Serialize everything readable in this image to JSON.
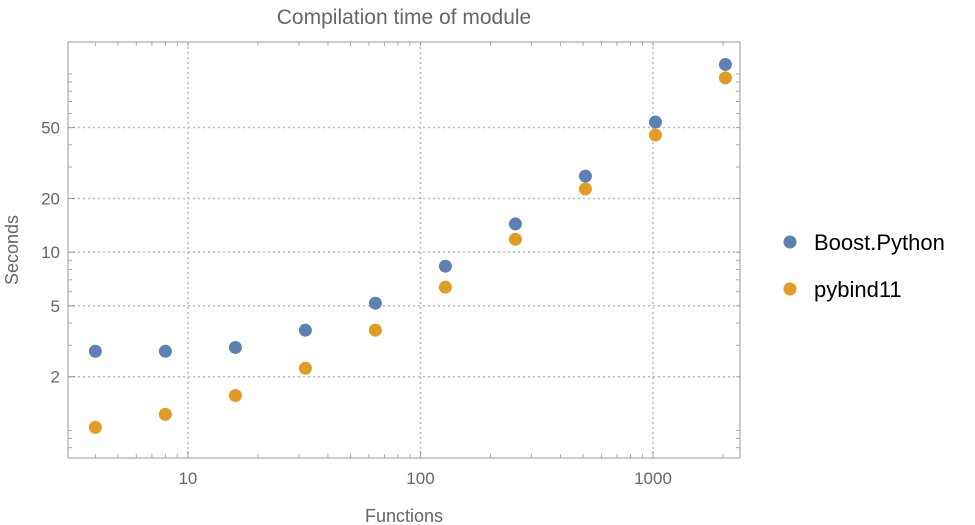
{
  "chart_data": {
    "type": "scatter",
    "title": "Compilation time of module",
    "xlabel": "Functions",
    "ylabel": "Seconds",
    "xscale": "log",
    "yscale": "log",
    "xlim": [
      3.05,
      2366
    ],
    "ylim": [
      0.7,
      151
    ],
    "grid": true,
    "legend_placement": "right",
    "x_ticks": [
      10,
      100,
      1000
    ],
    "y_ticks": [
      2,
      5,
      10,
      20,
      50
    ],
    "x": [
      4,
      8,
      16,
      32,
      64,
      128,
      256,
      512,
      1024,
      2048
    ],
    "series": [
      {
        "name": "Boost.Python",
        "color": "#5E81B5",
        "values": [
          2.78,
          2.78,
          2.92,
          3.65,
          5.17,
          8.34,
          14.4,
          26.7,
          53.7,
          113
        ]
      },
      {
        "name": "pybind11",
        "color": "#E19C24",
        "values": [
          1.04,
          1.23,
          1.57,
          2.23,
          3.65,
          6.36,
          11.8,
          22.6,
          45.4,
          95
        ]
      }
    ]
  }
}
